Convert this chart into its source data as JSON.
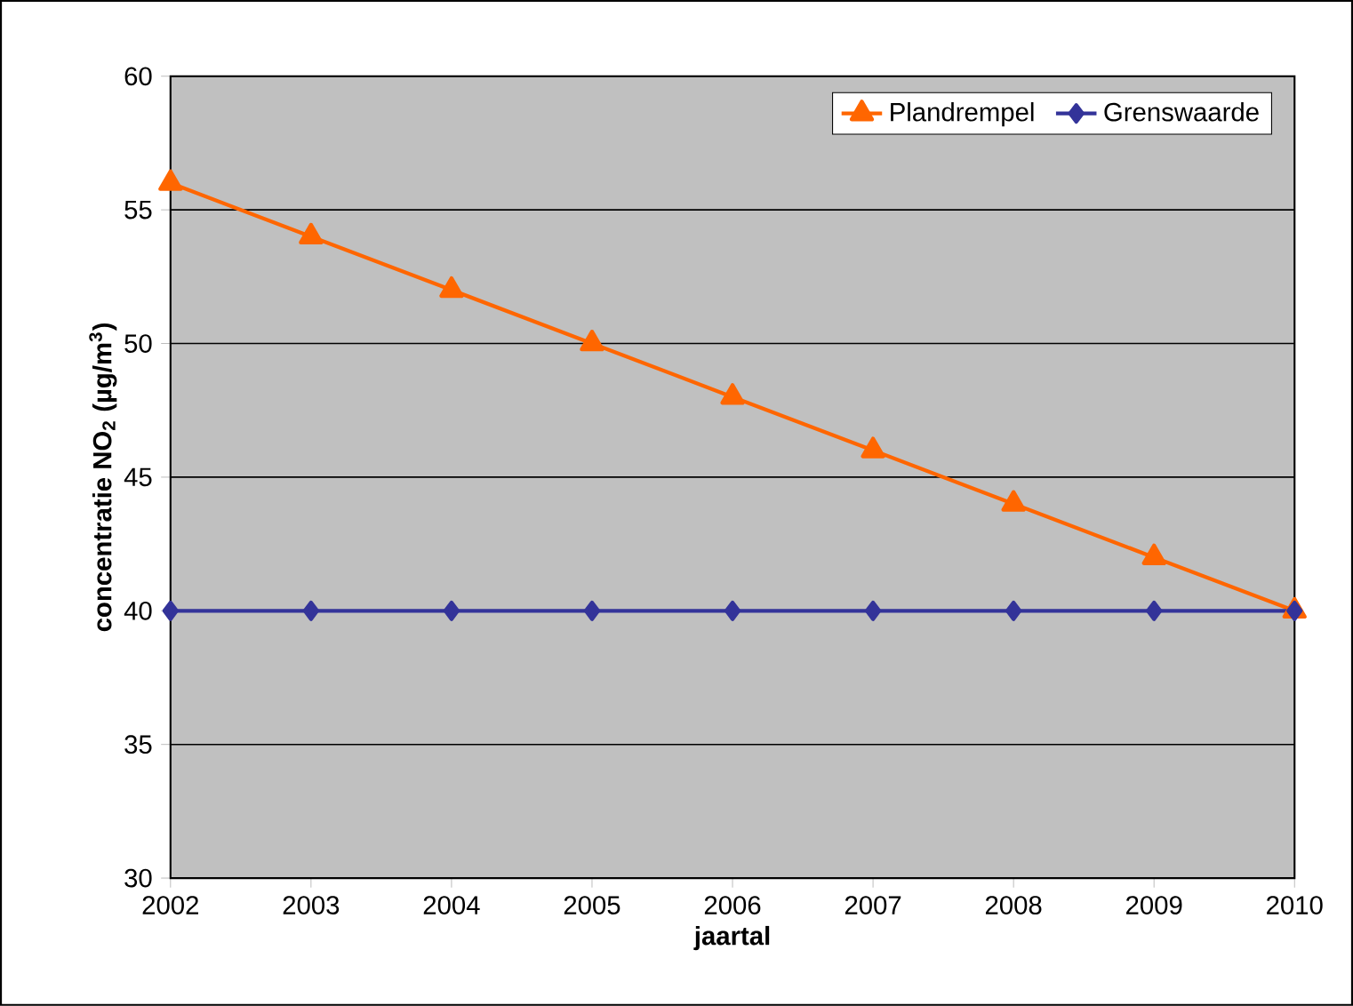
{
  "chart_data": {
    "type": "line",
    "xlabel": "jaartal",
    "ylabel": "concentratie NO$_{2}$ (µg/m$^{3}$)",
    "x": [
      2002,
      2003,
      2004,
      2005,
      2006,
      2007,
      2008,
      2009,
      2010
    ],
    "series": [
      {
        "name": "Plandrempel",
        "color": "#ff6600",
        "marker": "triangle",
        "values": [
          56,
          54,
          52,
          50,
          48,
          46,
          44,
          42,
          40
        ]
      },
      {
        "name": "Grenswaarde",
        "color": "#333399",
        "marker": "diamond",
        "values": [
          40,
          40,
          40,
          40,
          40,
          40,
          40,
          40,
          40
        ]
      }
    ],
    "xlim": [
      2002,
      2010
    ],
    "xticks": [
      2002,
      2003,
      2004,
      2005,
      2006,
      2007,
      2008,
      2009,
      2010
    ],
    "ylim": [
      30,
      60
    ],
    "yticks": [
      30,
      35,
      40,
      45,
      50,
      55,
      60
    ],
    "grid": "y",
    "legend": "top right",
    "line_style": "solid"
  }
}
